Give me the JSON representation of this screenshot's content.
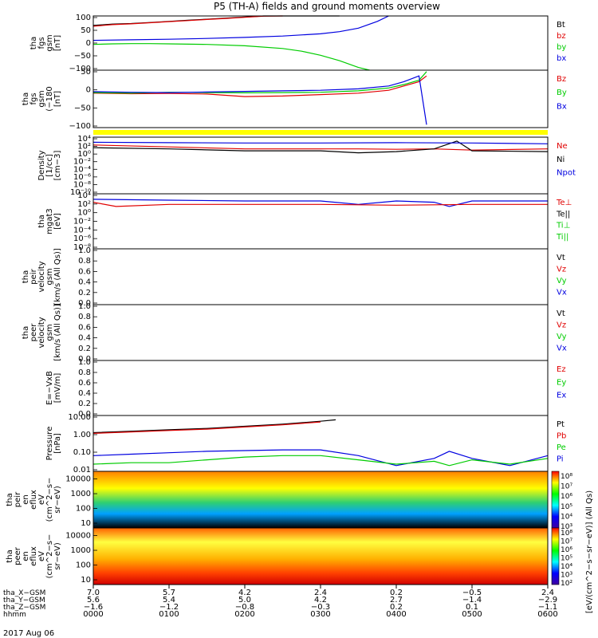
{
  "title": "P5 (TH-A) fields and ground moments overview",
  "date_label": "2017 Aug 06",
  "colors": {
    "black": "#000000",
    "red": "#e00000",
    "green": "#00cc00",
    "blue": "#0000e0",
    "yellow": "#ffff00"
  },
  "chart_data": [
    {
      "id": "fgs_gsm",
      "type": "line",
      "ylabel": [
        "tha",
        "fgs",
        "gsm",
        "[nT]"
      ],
      "yticks": [
        "100",
        "50",
        "0",
        "−50",
        "−100"
      ],
      "ylim": [
        -100,
        100
      ],
      "legend": [
        {
          "text": "Bt",
          "color": "#000000"
        },
        {
          "text": "bz",
          "color": "#e00000"
        },
        {
          "text": "by",
          "color": "#00cc00"
        },
        {
          "text": "bx",
          "color": "#0000e0"
        }
      ],
      "series": [
        {
          "name": "Bt",
          "color": "#000000",
          "x": [
            0,
            0.25,
            0.5,
            0.75,
            1,
            1.25,
            1.5,
            1.75,
            2,
            2.25,
            2.5,
            2.75,
            3,
            3.25
          ],
          "y": [
            65,
            70,
            72,
            76,
            80,
            84,
            88,
            92,
            96,
            100,
            104,
            108,
            112,
            116
          ]
        },
        {
          "name": "bz",
          "color": "#e00000",
          "x": [
            0,
            0.25,
            0.5,
            0.75,
            1,
            1.25,
            1.5,
            1.75,
            2,
            2.25,
            2.5
          ],
          "y": [
            62,
            68,
            71,
            75,
            79,
            83,
            87,
            91,
            95,
            99,
            103
          ]
        },
        {
          "name": "by",
          "color": "#00cc00",
          "x": [
            0,
            0.25,
            0.5,
            0.75,
            1,
            1.5,
            2,
            2.5,
            2.75,
            3,
            3.25,
            3.5,
            3.65
          ],
          "y": [
            -5,
            -3,
            -2,
            -2,
            -3,
            -5,
            -10,
            -20,
            -30,
            -45,
            -65,
            -90,
            -100
          ]
        },
        {
          "name": "bx",
          "color": "#0000e0",
          "x": [
            0,
            0.5,
            1,
            1.5,
            2,
            2.5,
            3,
            3.25,
            3.5,
            3.75,
            3.9
          ],
          "y": [
            10,
            12,
            14,
            17,
            21,
            26,
            34,
            42,
            55,
            80,
            100
          ]
        }
      ]
    },
    {
      "id": "fgs_gse",
      "type": "line",
      "ylabel": [
        "tha",
        "fgs",
        "gsm",
        "(−180",
        "[nT]"
      ],
      "yticks": [
        "50",
        "0",
        "−50",
        "−100"
      ],
      "ylim": [
        -120,
        80
      ],
      "legend": [
        {
          "text": "Bz",
          "color": "#e00000"
        },
        {
          "text": "By",
          "color": "#00cc00"
        },
        {
          "text": "Bx",
          "color": "#0000e0"
        }
      ],
      "series": [
        {
          "name": "Bz",
          "color": "#e00000",
          "x": [
            0,
            0.5,
            1,
            1.5,
            2,
            2.5,
            3,
            3.5,
            3.9,
            4.1,
            4.3,
            4.4
          ],
          "y": [
            0,
            -2,
            -1,
            -3,
            -12,
            -10,
            -5,
            0,
            10,
            25,
            40,
            60
          ]
        },
        {
          "name": "By",
          "color": "#00cc00",
          "x": [
            0,
            0.5,
            1,
            1.5,
            2,
            2.5,
            3,
            3.5,
            3.9,
            4.1,
            4.3,
            4.4
          ],
          "y": [
            2,
            0,
            3,
            2,
            1,
            2,
            3,
            8,
            18,
            30,
            45,
            75
          ]
        },
        {
          "name": "Bx",
          "color": "#0000e0",
          "x": [
            0,
            0.5,
            1,
            1.5,
            2,
            2.5,
            3,
            3.5,
            3.9,
            4.1,
            4.3,
            4.4
          ],
          "y": [
            5,
            3,
            2,
            4,
            6,
            8,
            10,
            15,
            25,
            40,
            60,
            -110
          ]
        }
      ]
    },
    {
      "id": "density",
      "type": "line",
      "log": true,
      "ylabel": [
        "Density",
        "[1/cc]",
        "[cm−3]"
      ],
      "yticks": [
        "10⁴",
        "10²",
        "10⁰",
        "10⁻²",
        "10⁻⁴",
        "10⁻⁶",
        "10⁻⁸",
        "10⁻¹⁰"
      ],
      "ylim": [
        -10,
        4.5
      ],
      "legend": [
        {
          "text": "Ne",
          "color": "#e00000"
        },
        {
          "text": "Ni",
          "color": "#000000"
        },
        {
          "text": "Npot",
          "color": "#0000e0"
        }
      ],
      "series": [
        {
          "name": "Ne",
          "color": "#e00000",
          "x": [
            0,
            1,
            2,
            3,
            3.5,
            4,
            4.5,
            5,
            6
          ],
          "y": [
            2.5,
            2,
            1.5,
            1.5,
            1.5,
            1.4,
            1.5,
            1.2,
            1.5
          ]
        },
        {
          "name": "Ni",
          "color": "#000000",
          "x": [
            0,
            1,
            2,
            3,
            3.5,
            4,
            4.5,
            4.8,
            5,
            6
          ],
          "y": [
            1.8,
            1.5,
            1,
            1,
            0.5,
            0.8,
            1.5,
            3.5,
            1,
            0.8
          ]
        },
        {
          "name": "Npot",
          "color": "#0000e0",
          "x": [
            0,
            1,
            2,
            3,
            4,
            5,
            6
          ],
          "y": [
            3.2,
            3.1,
            3.0,
            3.0,
            3.1,
            3.0,
            2.8
          ]
        }
      ]
    },
    {
      "id": "temperature",
      "type": "line",
      "log": true,
      "ylabel": [
        "tha",
        "mgat3",
        "[eV]"
      ],
      "yticks": [
        "10⁴",
        "10²",
        "10⁰",
        "10⁻²",
        "10⁻⁴",
        "10⁻⁶",
        "10⁻⁸"
      ],
      "ylim": [
        -8.5,
        4.5
      ],
      "legend": [
        {
          "text": "Te⊥",
          "color": "#e00000"
        },
        {
          "text": "Te||",
          "color": "#000000"
        },
        {
          "text": "Ti⊥",
          "color": "#00cc00"
        },
        {
          "text": "Ti||",
          "color": "#00cc00"
        }
      ],
      "series": [
        {
          "name": "Ti",
          "color": "#0000e0",
          "x": [
            0,
            1,
            2,
            3,
            3.5,
            4,
            4.5,
            4.7,
            5,
            6
          ],
          "y": [
            3.2,
            3,
            2.8,
            2.8,
            2,
            2.8,
            2.5,
            1.5,
            2.8,
            2.8
          ]
        },
        {
          "name": "Te",
          "color": "#e00000",
          "x": [
            0,
            0.3,
            1,
            2,
            3,
            4,
            5,
            6
          ],
          "y": [
            2.5,
            1.5,
            2,
            2,
            2,
            1.8,
            2,
            2
          ]
        }
      ]
    },
    {
      "id": "peir_velocity",
      "type": "line",
      "ylabel": [
        "tha",
        "peir",
        "velocity",
        "gsm",
        "[km/s (All Qs)]"
      ],
      "yticks": [
        "1.0",
        "0.8",
        "0.6",
        "0.4",
        "0.2",
        "0.0"
      ],
      "ylim": [
        0,
        1
      ],
      "legend": [
        {
          "text": "Vt",
          "color": "#000000"
        },
        {
          "text": "Vz",
          "color": "#e00000"
        },
        {
          "text": "Vy",
          "color": "#00cc00"
        },
        {
          "text": "Vx",
          "color": "#0000e0"
        }
      ],
      "series": []
    },
    {
      "id": "peer_velocity",
      "type": "line",
      "ylabel": [
        "tha",
        "peer",
        "velocity",
        "gsm",
        "[km/s (All Qs)]"
      ],
      "yticks": [
        "1.0",
        "0.8",
        "0.6",
        "0.4",
        "0.2",
        "0.0"
      ],
      "ylim": [
        0,
        1
      ],
      "legend": [
        {
          "text": "Vt",
          "color": "#000000"
        },
        {
          "text": "Vz",
          "color": "#e00000"
        },
        {
          "text": "Vy",
          "color": "#00cc00"
        },
        {
          "text": "Vx",
          "color": "#0000e0"
        }
      ],
      "series": []
    },
    {
      "id": "e_field",
      "type": "line",
      "ylabel": [
        "E=−VxB",
        "[mV/m]"
      ],
      "yticks": [
        "1.0",
        "0.8",
        "0.6",
        "0.4",
        "0.2",
        "0.0"
      ],
      "ylim": [
        0,
        1
      ],
      "legend": [
        {
          "text": "Ez",
          "color": "#e00000"
        },
        {
          "text": "Ey",
          "color": "#00cc00"
        },
        {
          "text": "Ex",
          "color": "#0000e0"
        }
      ],
      "series": []
    },
    {
      "id": "pressure",
      "type": "line",
      "log": true,
      "ylabel": [
        "Pressure",
        "[nPa]"
      ],
      "yticks": [
        "10.00",
        "1.00",
        "0.10",
        "0.01"
      ],
      "ylim": [
        -2.4,
        1.5
      ],
      "legend": [
        {
          "text": "Pt",
          "color": "#000000"
        },
        {
          "text": "Pb",
          "color": "#e00000"
        },
        {
          "text": "Pe",
          "color": "#00cc00"
        },
        {
          "text": "Pi",
          "color": "#0000e0"
        }
      ],
      "series": [
        {
          "name": "Pt",
          "color": "#000000",
          "x": [
            0,
            0.5,
            1,
            1.5,
            2,
            2.5,
            3,
            3.2
          ],
          "y": [
            0.3,
            0.4,
            0.5,
            0.6,
            0.75,
            0.9,
            1.1,
            1.2
          ]
        },
        {
          "name": "Pb",
          "color": "#e00000",
          "x": [
            0,
            0.5,
            1,
            1.5,
            2,
            2.5,
            3
          ],
          "y": [
            0.25,
            0.35,
            0.45,
            0.55,
            0.7,
            0.85,
            1.05
          ]
        },
        {
          "name": "Pi",
          "color": "#0000e0",
          "x": [
            0,
            0.5,
            1,
            1.5,
            2,
            2.5,
            3,
            3.5,
            4,
            4.5,
            4.7,
            5,
            5.5,
            6
          ],
          "y": [
            -1.3,
            -1.2,
            -1.1,
            -1,
            -0.95,
            -0.9,
            -0.9,
            -1.3,
            -2.0,
            -1.5,
            -1.0,
            -1.5,
            -2.0,
            -1.3
          ]
        },
        {
          "name": "Pe",
          "color": "#00cc00",
          "x": [
            0,
            0.5,
            1,
            1.5,
            2,
            2.5,
            3,
            3.5,
            4,
            4.5,
            4.7,
            5,
            5.5,
            6
          ],
          "y": [
            -1.9,
            -1.8,
            -1.8,
            -1.6,
            -1.4,
            -1.3,
            -1.3,
            -1.6,
            -1.9,
            -1.7,
            -2.0,
            -1.6,
            -1.9,
            -1.5
          ]
        }
      ]
    },
    {
      "id": "peir_eflux",
      "type": "heatmap",
      "ylabel": [
        "tha",
        "peir",
        "en",
        "eflux",
        "eV",
        "(cm^2−s−",
        "sr−eV)"
      ],
      "yticks": [
        "10000",
        "1000",
        "100",
        "10"
      ],
      "colorbar": [
        "10⁸",
        "10⁷",
        "10⁶",
        "10⁵",
        "10⁴",
        "10³"
      ]
    },
    {
      "id": "peer_eflux",
      "type": "heatmap",
      "ylabel": [
        "tha",
        "peer",
        "en",
        "eflux",
        "eV",
        "(cm^2−s−",
        "sr−eV)"
      ],
      "yticks": [
        "10000",
        "1000",
        "100",
        "10"
      ],
      "colorbar": [
        "10⁸",
        "10⁷",
        "10⁶",
        "10⁵",
        "10⁴",
        "10³",
        "10²"
      ]
    }
  ],
  "colorbar_label": "[eV/(cm^2−s−sr−eV)] (All Qs)",
  "x_axis": {
    "row_labels": [
      "tha_X−GSM",
      "tha_Y−GSM",
      "tha_Z−GSM",
      "hhmm"
    ],
    "columns": [
      [
        "7.0",
        "5.6",
        "−1.6",
        "0000"
      ],
      [
        "5.7",
        "5.4",
        "−1.2",
        "0100"
      ],
      [
        "4.2",
        "5.0",
        "−0.8",
        "0200"
      ],
      [
        "2.4",
        "4.2",
        "−0.3",
        "0300"
      ],
      [
        "0.2",
        "2.7",
        "0.2",
        "0400"
      ],
      [
        "−0.5",
        "−1.4",
        "0.1",
        "0500"
      ],
      [
        "2.4",
        "−2.9",
        "−1.1",
        "0600"
      ]
    ]
  }
}
